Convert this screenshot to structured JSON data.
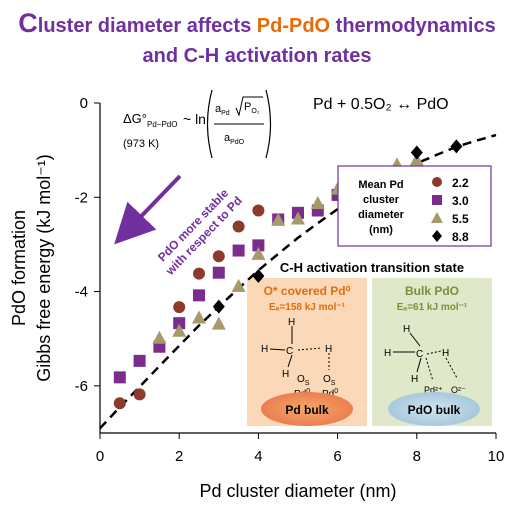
{
  "title": {
    "first_letter": "C",
    "line1_part1": "luster diameter affects ",
    "line1_pd": "Pd-PdO",
    "line1_part2": " thermodynamics",
    "line2": "and C-H activation rates"
  },
  "equation": {
    "delta_g": "ΔG°",
    "delta_g_sub": "Pd−PdO",
    "temp": "(973 K)",
    "approx_ln": "~ ln",
    "numerator_a": "a",
    "numerator_a_sub": "Pd",
    "numerator_p": "P",
    "numerator_p_sub": "O₂",
    "denominator_a": "a",
    "denominator_a_sub": "PdO",
    "reaction": "Pd + 0.5O₂ ↔ PdO"
  },
  "arrow_text": {
    "line1": "PdO more stable",
    "line2": "with respect to Pd"
  },
  "inset": {
    "header": "C-H activation transition state",
    "left_title": "O* covered Pd⁰",
    "left_ea": "Eₐ=158 kJ mol⁻¹",
    "left_bulk": "Pd bulk",
    "left_atom_h": "H",
    "left_atom_c": "C",
    "left_atom_o": "O",
    "left_atom_o_sub": "S",
    "left_atom_pd": "Pd",
    "left_atom_pd_sup": "0",
    "right_title": "Bulk PdO",
    "right_ea": "Eₐ=61 kJ mol⁻¹",
    "right_bulk": "PdO bulk",
    "right_atom_h": "H",
    "right_atom_c": "C",
    "right_atom_pd": "Pd²⁺",
    "right_atom_o": "O²⁻",
    "colors": {
      "left_bg": "#fbd9b8",
      "left_title": "#e46c0a",
      "right_bg": "#dfe8c9",
      "right_title": "#76923c"
    }
  },
  "colors": {
    "title": "#7030a0",
    "pd_highlight": "#e46c0a",
    "arrow": "#7030a0"
  },
  "chart_data": {
    "type": "scatter",
    "xlabel": "Pd cluster diameter (nm)",
    "ylabel_line1": "PdO formation",
    "ylabel_line2": "Gibbs free energy (kJ mol⁻¹)",
    "xlim": [
      0,
      10
    ],
    "ylim": [
      -7,
      0
    ],
    "x_ticks": [
      0,
      2,
      4,
      6,
      8,
      10
    ],
    "y_ticks": [
      0,
      -2,
      -4,
      -6
    ],
    "x_tick_labels": [
      "0",
      "2",
      "4",
      "6",
      "8",
      "10"
    ],
    "y_tick_labels": [
      "0",
      "-2",
      "-4",
      "-6"
    ],
    "grid": false,
    "legend_header": [
      "Mean Pd",
      "cluster",
      "diameter",
      "(nm)"
    ],
    "legend_position": "center-right",
    "series": [
      {
        "name": "2.2",
        "marker": "circle",
        "color": "#8b3a2b",
        "x": [
          0.5,
          1.0,
          2.0,
          2.5,
          3.0,
          3.5,
          4.0
        ],
        "y": [
          -6.37,
          -6.18,
          -4.33,
          -3.62,
          -3.25,
          -2.62,
          -2.28
        ]
      },
      {
        "name": "3.0",
        "marker": "square",
        "color": "#7b2c8f",
        "x": [
          0.5,
          1.0,
          1.5,
          2.0,
          2.5,
          3.0,
          3.5,
          4.0,
          4.5,
          5.0,
          5.5,
          6.0,
          6.5
        ],
        "y": [
          -5.82,
          -5.47,
          -5.17,
          -4.67,
          -4.08,
          -3.6,
          -3.13,
          -3.02,
          -2.47,
          -2.33,
          -2.28,
          -1.95,
          -1.7
        ]
      },
      {
        "name": "5.5",
        "marker": "triangle",
        "color": "#a59a68",
        "x": [
          1.5,
          2.0,
          2.5,
          3.0,
          3.5,
          4.0,
          4.5,
          5.0,
          5.5,
          6.0,
          6.5,
          7.0,
          7.5,
          8.0
        ],
        "y": [
          -4.98,
          -4.83,
          -4.55,
          -4.68,
          -3.88,
          -3.2,
          -2.48,
          -2.45,
          -2.12,
          -1.82,
          -1.52,
          -1.47,
          -1.3,
          -1.2
        ]
      },
      {
        "name": "8.8",
        "marker": "diamond",
        "color": "#000000",
        "x": [
          3.0,
          4.0,
          7.0,
          8.0,
          9.0
        ],
        "y": [
          -4.32,
          -3.67,
          -1.55,
          -1.05,
          -0.92
        ]
      }
    ],
    "fit_curve": {
      "style": "dashed",
      "x": [
        0.0,
        0.5,
        1.0,
        1.5,
        2.0,
        2.5,
        3.0,
        3.5,
        4.0,
        4.5,
        5.0,
        5.5,
        6.0,
        6.5,
        7.0,
        7.5,
        8.0,
        8.5,
        9.0,
        9.5,
        10.0
      ],
      "y": [
        -6.9,
        -6.45,
        -6.02,
        -5.58,
        -5.15,
        -4.72,
        -4.32,
        -3.93,
        -3.55,
        -3.2,
        -2.86,
        -2.55,
        -2.25,
        -1.98,
        -1.72,
        -1.49,
        -1.28,
        -1.1,
        -0.93,
        -0.8,
        -0.68
      ]
    }
  }
}
